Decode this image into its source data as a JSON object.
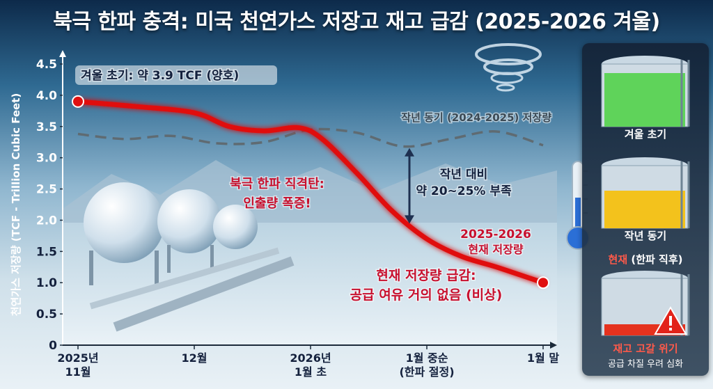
{
  "title": "북극 한파 충격: 미국 천연가스 저장고 재고 급감 (2025-2026 겨울)",
  "chart_data": {
    "type": "line",
    "ylabel": "천연가스 저장량 (TCF - Trillion Cubic Feet)",
    "ylim": [
      0,
      4.5
    ],
    "yticks": [
      "0",
      "0.5",
      "1.0",
      "1.5",
      "2.0",
      "2.5",
      "3.0",
      "3.5",
      "4.0",
      "4.5"
    ],
    "x_tick_labels": [
      {
        "line1": "2025년",
        "line2": "11월"
      },
      {
        "line1": "12월",
        "line2": ""
      },
      {
        "line1": "2026년",
        "line2": "1월 초"
      },
      {
        "line1": "1월 중순",
        "line2": "(한파 절정)"
      },
      {
        "line1": "1월 말",
        "line2": ""
      }
    ],
    "xlim": [
      0,
      4
    ],
    "series": [
      {
        "name": "현재 저장량",
        "color": "#e01010",
        "style": "solid",
        "x": [
          0,
          0.5,
          1,
          1.3,
          1.6,
          1.9,
          2.1,
          2.4,
          2.7,
          3.0,
          3.3,
          3.6,
          4.0
        ],
        "y": [
          3.9,
          3.82,
          3.72,
          3.5,
          3.43,
          3.48,
          3.3,
          2.75,
          2.15,
          1.7,
          1.42,
          1.25,
          1.0
        ]
      },
      {
        "name": "작년 동기 (2024-2025) 저장량",
        "color": "#5f6b72",
        "style": "dashed",
        "x": [
          0,
          0.4,
          0.8,
          1.2,
          1.6,
          2.0,
          2.4,
          2.8,
          3.2,
          3.6,
          4.0
        ],
        "y": [
          3.38,
          3.3,
          3.35,
          3.23,
          3.25,
          3.45,
          3.4,
          3.18,
          3.3,
          3.42,
          3.2
        ]
      }
    ],
    "annotations": [
      {
        "text": "겨울 초기: 약 3.9 TCF (양호)",
        "color": "#14213d"
      },
      {
        "text": "작년 동기 (2024-2025) 저장량",
        "color": "#3c4a55"
      },
      {
        "text": "북극 한파 직격탄:",
        "color": "#c8102e"
      },
      {
        "text": "인출량 폭증!",
        "color": "#c8102e"
      },
      {
        "text": "작년 대비",
        "color": "#14213d"
      },
      {
        "text": "약 20~25% 부족",
        "color": "#14213d"
      },
      {
        "text": "2025-2026",
        "color": "#c8102e"
      },
      {
        "text": "현재 저장량",
        "color": "#c8102e"
      },
      {
        "text": "현재 저장량 급감:",
        "color": "#c8102e"
      },
      {
        "text": "공급 여유 거의 없음 (비상)",
        "color": "#c8102e"
      }
    ]
  },
  "tanks": [
    {
      "label": "겨울 초기",
      "level": 0.85,
      "color": "#5fd35a"
    },
    {
      "label": "작년 동기",
      "level": 0.6,
      "color": "#f3c21c"
    },
    {
      "label_red": "현재",
      "label_rest": " (한파 직후)",
      "level": 0.2,
      "color": "#e5321e"
    }
  ],
  "warning": {
    "title": "재고 고갈 위기",
    "subtitle": "공급 차질 우려 심화"
  }
}
